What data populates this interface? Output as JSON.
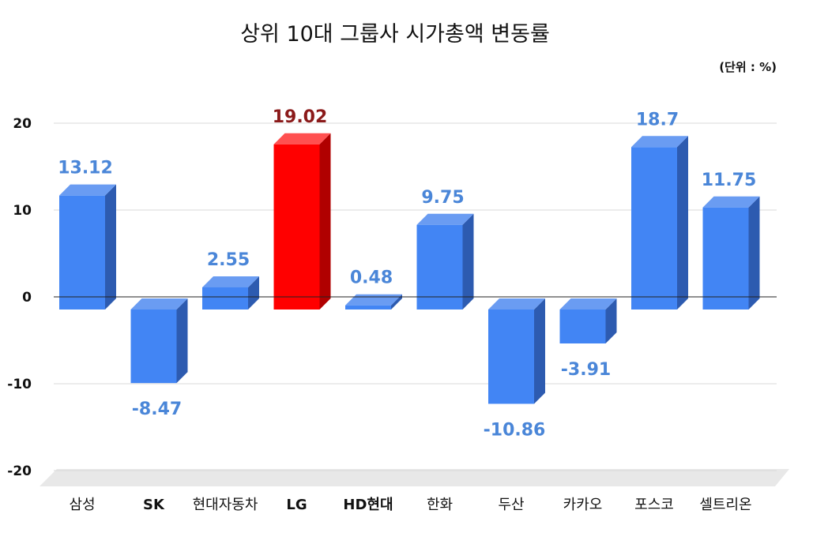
{
  "chart_data": {
    "type": "bar",
    "title": "상위 10대 그룹사 시가총액 변동률",
    "unit_label": "(단위 : %)",
    "categories": [
      "삼성",
      "SK",
      "현대자동차",
      "LG",
      "HD현대",
      "한화",
      "두산",
      "카카오",
      "포스코",
      "셀트리온"
    ],
    "values": [
      13.12,
      -8.47,
      2.55,
      19.02,
      0.48,
      9.75,
      -10.86,
      -3.91,
      18.7,
      11.75
    ],
    "value_labels": [
      "13.12",
      "-8.47",
      "2.55",
      "19.02",
      "0.48",
      "9.75",
      "-10.86",
      "-3.91",
      "18.7",
      "11.75"
    ],
    "bold_categories": [
      "SK",
      "LG",
      "HD현대"
    ],
    "highlight_category": "LG",
    "ylim": [
      -20,
      20
    ],
    "yticks": [
      20,
      10,
      0,
      -10,
      -20
    ],
    "grid": true,
    "colors": {
      "bar": "#4285f4",
      "bar_side": "#2d5bb0",
      "bar_top": "#6a9cf2",
      "highlight": "#ff0000",
      "highlight_side": "#b00000",
      "highlight_top": "#ff5050",
      "value_label": "#4a86d8",
      "highlight_label": "#8b1a1a",
      "grid": "#d9d9d9",
      "floor": "#e8e8e8"
    }
  }
}
